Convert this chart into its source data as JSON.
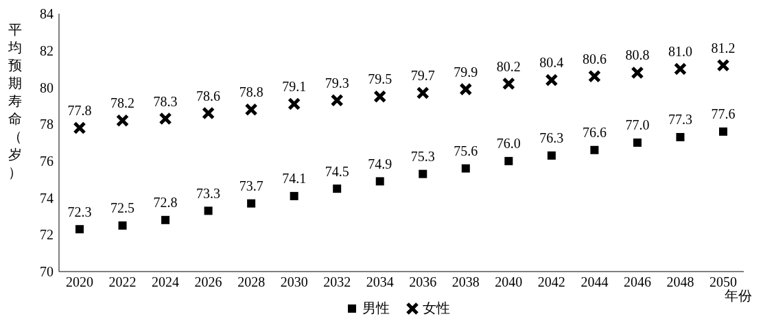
{
  "chart_data": {
    "type": "scatter",
    "ylabel": "平均预期寿命（岁）",
    "xlabel": "年份",
    "categories": [
      "2020",
      "2022",
      "2024",
      "2026",
      "2028",
      "2030",
      "2032",
      "2034",
      "2036",
      "2038",
      "2040",
      "2042",
      "2044",
      "2046",
      "2048",
      "2050"
    ],
    "series": [
      {
        "name": "男性",
        "color": "#000000",
        "marker": "square",
        "values": [
          72.3,
          72.5,
          72.8,
          73.3,
          73.7,
          74.1,
          74.5,
          74.9,
          75.3,
          75.6,
          76.0,
          76.3,
          76.6,
          77.0,
          77.3,
          77.6
        ],
        "value_labels": [
          "72.3",
          "72.5",
          "72.8",
          "73.3",
          "73.7",
          "74.1",
          "74.5",
          "74.9",
          "75.3",
          "75.6",
          "76.0",
          "76.3",
          "76.6",
          "77.0",
          "77.3",
          "77.6"
        ]
      },
      {
        "name": "女性",
        "color": "#000000",
        "marker": "cross",
        "values": [
          77.8,
          78.2,
          78.3,
          78.6,
          78.8,
          79.1,
          79.3,
          79.5,
          79.7,
          79.9,
          80.2,
          80.4,
          80.6,
          80.8,
          81.0,
          81.2
        ],
        "value_labels": [
          "77.8",
          "78.2",
          "78.3",
          "78.6",
          "78.8",
          "79.1",
          "79.3",
          "79.5",
          "79.7",
          "79.9",
          "80.2",
          "80.4",
          "80.6",
          "80.8",
          "81.0",
          "81.2"
        ]
      }
    ],
    "ylim": [
      70,
      84
    ],
    "yticks": [
      70,
      72,
      74,
      76,
      78,
      80,
      82,
      84
    ],
    "grid": false,
    "legend": "bottom"
  }
}
